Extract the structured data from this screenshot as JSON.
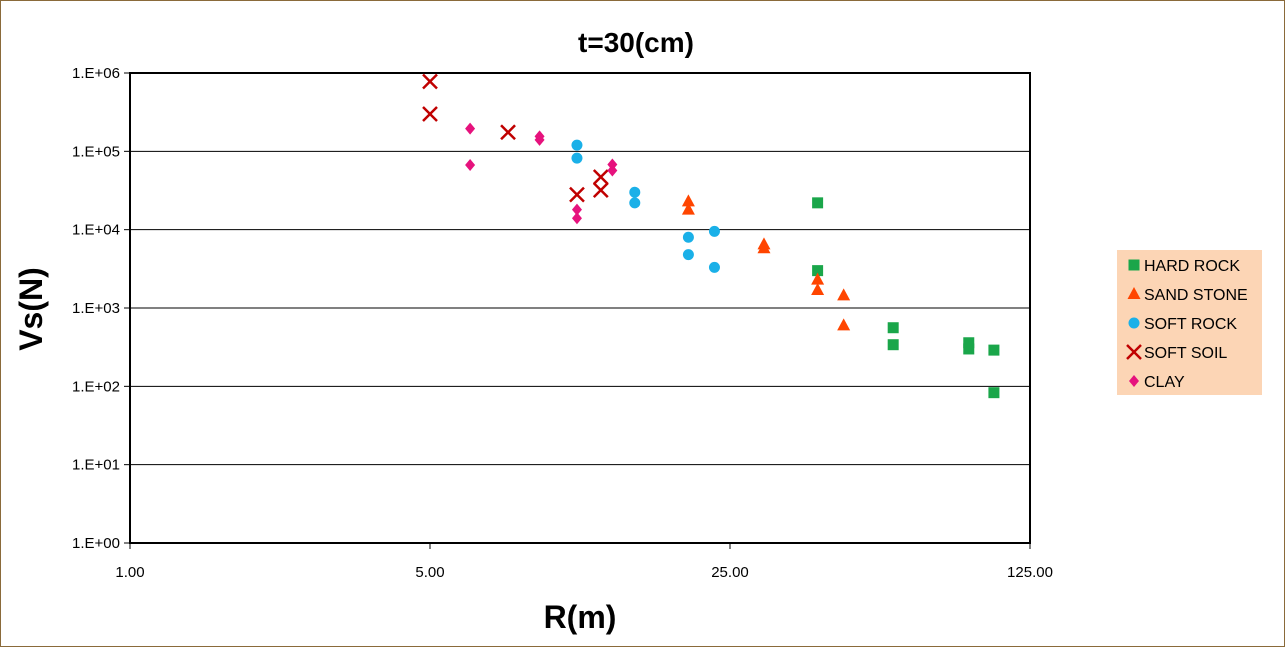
{
  "chart_data": {
    "type": "scatter",
    "title": "t=30(cm)",
    "xlabel": "R(m)",
    "ylabel": "Vs(N)",
    "x_scale": "log",
    "y_scale": "log",
    "xlim": [
      1,
      125
    ],
    "ylim": [
      1,
      1000000
    ],
    "x_ticks": [
      {
        "value": 1,
        "label": "1.00"
      },
      {
        "value": 5,
        "label": "5.00"
      },
      {
        "value": 25,
        "label": "25.00"
      },
      {
        "value": 125,
        "label": "125.00"
      }
    ],
    "y_ticks": [
      {
        "value": 1,
        "label": "1.E+00"
      },
      {
        "value": 10,
        "label": "1.E+01"
      },
      {
        "value": 100,
        "label": "1.E+02"
      },
      {
        "value": 1000,
        "label": "1.E+03"
      },
      {
        "value": 10000,
        "label": "1.E+04"
      },
      {
        "value": 100000,
        "label": "1.E+05"
      },
      {
        "value": 1000000,
        "label": "1.E+06"
      }
    ],
    "grid": "horizontal",
    "legend_position": "right",
    "series": [
      {
        "name": "HARD ROCK",
        "marker": "square",
        "color": "#1aa64a",
        "points": [
          [
            40,
            22000
          ],
          [
            40,
            3000
          ],
          [
            60,
            560
          ],
          [
            60,
            340
          ],
          [
            90,
            360
          ],
          [
            90,
            300
          ],
          [
            103,
            290
          ],
          [
            103,
            83
          ]
        ]
      },
      {
        "name": "SAND STONE",
        "marker": "triangle",
        "color": "#ff4500",
        "points": [
          [
            20,
            23000
          ],
          [
            20,
            18000
          ],
          [
            30,
            6500
          ],
          [
            30,
            5800
          ],
          [
            40,
            2300
          ],
          [
            40,
            1700
          ],
          [
            46,
            1450
          ],
          [
            46,
            600
          ]
        ]
      },
      {
        "name": "SOFT ROCK",
        "marker": "circle",
        "color": "#1ab0e8",
        "points": [
          [
            11,
            120000
          ],
          [
            11,
            82000
          ],
          [
            15,
            30000
          ],
          [
            15,
            22000
          ],
          [
            20,
            8000
          ],
          [
            20,
            4800
          ],
          [
            23,
            9500
          ],
          [
            23,
            3300
          ]
        ]
      },
      {
        "name": "SOFT SOIL",
        "marker": "x",
        "color": "#c00000",
        "points": [
          [
            5,
            780000
          ],
          [
            5,
            300000
          ],
          [
            7.6,
            175000
          ],
          [
            11,
            28000
          ],
          [
            12.5,
            47000
          ],
          [
            12.5,
            32000
          ]
        ]
      },
      {
        "name": "CLAY",
        "marker": "diamond",
        "color": "#e6127d",
        "points": [
          [
            6.2,
            195000
          ],
          [
            6.2,
            67000
          ],
          [
            9,
            155000
          ],
          [
            9,
            140000
          ],
          [
            11,
            18000
          ],
          [
            11,
            14000
          ],
          [
            13.3,
            68000
          ],
          [
            13.3,
            57000
          ]
        ]
      }
    ]
  }
}
